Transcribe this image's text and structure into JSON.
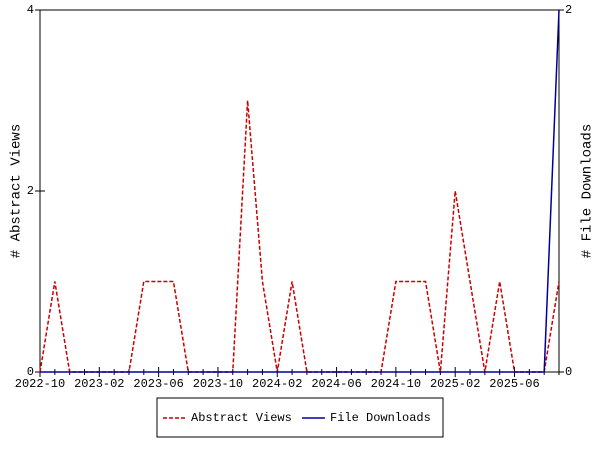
{
  "chart_data": {
    "type": "line",
    "categories": [
      "2022-10",
      null,
      null,
      null,
      "2023-02",
      null,
      null,
      null,
      "2023-06",
      null,
      null,
      null,
      "2023-10",
      null,
      null,
      null,
      "2024-02",
      null,
      null,
      null,
      "2024-06",
      null,
      null,
      null,
      "2024-10",
      null,
      null,
      null,
      "2025-02",
      null,
      null,
      null,
      "2025-06",
      null,
      null,
      null
    ],
    "series": [
      {
        "name": "Abstract Views",
        "color": "#cc0000",
        "dash": true,
        "values": [
          0,
          1,
          0,
          0,
          0,
          0,
          0,
          1,
          1,
          1,
          0,
          0,
          0,
          0,
          3,
          1,
          0,
          1,
          0,
          0,
          0,
          0,
          0,
          0,
          1,
          1,
          1,
          0,
          2,
          1,
          0,
          1,
          0,
          0,
          0,
          1
        ]
      },
      {
        "name": "File Downloads",
        "color": "#000099",
        "dash": false,
        "axis": "y2",
        "values": [
          0,
          0,
          0,
          0,
          0,
          0,
          0,
          0,
          0,
          0,
          0,
          0,
          0,
          0,
          0,
          0,
          0,
          0,
          0,
          0,
          0,
          0,
          0,
          0,
          0,
          0,
          0,
          0,
          0,
          0,
          0,
          0,
          0,
          0,
          0,
          2
        ]
      }
    ],
    "ylabel": "# Abstract Views",
    "y2label": "# File Downloads",
    "ylim": [
      0,
      4
    ],
    "yticks": [
      0,
      2,
      4
    ],
    "y2lim": [
      0,
      2
    ],
    "y2ticks": [
      0,
      2
    ],
    "legend": "bottom"
  }
}
